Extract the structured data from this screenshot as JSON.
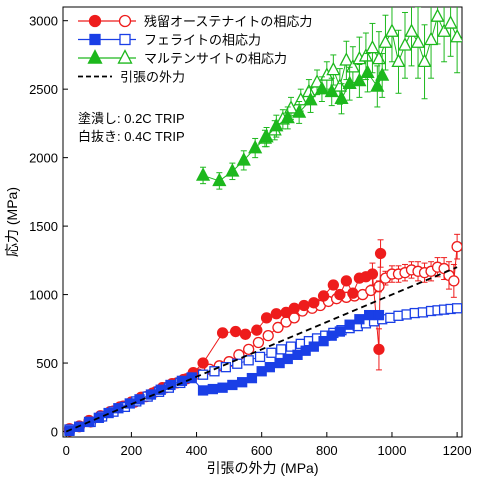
{
  "chart_data": {
    "type": "scatter",
    "xlabel": "引張の外力 (MPa)",
    "ylabel": "応力 (MPa)",
    "xlim": [
      -10,
      1215
    ],
    "ylim": [
      -40,
      3100
    ],
    "xticks": [
      0,
      200,
      400,
      600,
      800,
      1000,
      1200
    ],
    "yticks": [
      0,
      500,
      1000,
      1500,
      2000,
      2500,
      3000
    ],
    "grid": false,
    "legend_position": "top-left",
    "annotations": [
      "塗潰し: 0.2C TRIP",
      "白抜き: 0.4C TRIP"
    ],
    "series": [
      {
        "name": "残留オーステナイトの相応力",
        "color": "#ee1c1c",
        "marker": "circle",
        "filled": [
          [
            10,
            5
          ],
          [
            40,
            35
          ],
          [
            70,
            80
          ],
          [
            105,
            115
          ],
          [
            135,
            145
          ],
          [
            165,
            180
          ],
          [
            200,
            215
          ],
          [
            230,
            250
          ],
          [
            265,
            280
          ],
          [
            295,
            320
          ],
          [
            325,
            350
          ],
          [
            360,
            380
          ],
          [
            390,
            430
          ],
          [
            420,
            500
          ],
          [
            480,
            720
          ],
          [
            520,
            730
          ],
          [
            550,
            710
          ],
          [
            585,
            740
          ],
          [
            615,
            830
          ],
          [
            645,
            860
          ],
          [
            675,
            870
          ],
          [
            700,
            900
          ],
          [
            730,
            920
          ],
          [
            760,
            940
          ],
          [
            790,
            990
          ],
          [
            820,
            1070
          ],
          [
            840,
            1000
          ],
          [
            860,
            1100
          ],
          [
            880,
            1010
          ],
          [
            900,
            1120
          ],
          [
            920,
            1130
          ],
          [
            940,
            1150
          ],
          [
            960,
            600
          ],
          [
            965,
            1300
          ]
        ],
        "filled_err": [
          0,
          0,
          0,
          0,
          0,
          0,
          0,
          0,
          0,
          0,
          0,
          0,
          0,
          0,
          0,
          0,
          0,
          0,
          0,
          0,
          0,
          0,
          0,
          0,
          0,
          0,
          0,
          0,
          0,
          30,
          0,
          80,
          150,
          100
        ],
        "open": [
          [
            10,
            20
          ],
          [
            40,
            40
          ],
          [
            75,
            70
          ],
          [
            110,
            110
          ],
          [
            145,
            150
          ],
          [
            175,
            185
          ],
          [
            210,
            215
          ],
          [
            245,
            255
          ],
          [
            275,
            290
          ],
          [
            305,
            320
          ],
          [
            340,
            355
          ],
          [
            370,
            385
          ],
          [
            405,
            420
          ],
          [
            440,
            455
          ],
          [
            470,
            480
          ],
          [
            500,
            510
          ],
          [
            530,
            560
          ],
          [
            560,
            600
          ],
          [
            590,
            650
          ],
          [
            620,
            700
          ],
          [
            650,
            760
          ],
          [
            675,
            800
          ],
          [
            700,
            830
          ],
          [
            725,
            880
          ],
          [
            755,
            900
          ],
          [
            780,
            920
          ],
          [
            805,
            950
          ],
          [
            830,
            970
          ],
          [
            860,
            980
          ],
          [
            885,
            990
          ],
          [
            910,
            1000
          ],
          [
            935,
            1030
          ],
          [
            960,
            1060
          ],
          [
            980,
            1120
          ],
          [
            1000,
            1150
          ],
          [
            1020,
            1150
          ],
          [
            1040,
            1160
          ],
          [
            1060,
            1180
          ],
          [
            1080,
            1170
          ],
          [
            1100,
            1160
          ],
          [
            1120,
            1170
          ],
          [
            1140,
            1200
          ],
          [
            1160,
            1190
          ],
          [
            1175,
            1140
          ],
          [
            1190,
            1100
          ],
          [
            1200,
            1350
          ]
        ],
        "open_err": [
          0,
          0,
          0,
          0,
          0,
          0,
          0,
          0,
          0,
          0,
          0,
          0,
          0,
          0,
          0,
          0,
          0,
          0,
          0,
          0,
          0,
          0,
          0,
          0,
          0,
          0,
          0,
          0,
          0,
          0,
          0,
          0,
          40,
          50,
          60,
          60,
          60,
          60,
          70,
          70,
          70,
          70,
          80,
          100,
          120,
          90
        ]
      },
      {
        "name": "フェライトの相応力",
        "color": "#1a3fe6",
        "marker": "square",
        "filled": [
          [
            10,
            5
          ],
          [
            40,
            35
          ],
          [
            70,
            70
          ],
          [
            100,
            100
          ],
          [
            130,
            135
          ],
          [
            160,
            170
          ],
          [
            195,
            205
          ],
          [
            225,
            235
          ],
          [
            260,
            270
          ],
          [
            290,
            305
          ],
          [
            320,
            340
          ],
          [
            355,
            370
          ],
          [
            385,
            395
          ],
          [
            420,
            300
          ],
          [
            450,
            310
          ],
          [
            480,
            320
          ],
          [
            510,
            340
          ],
          [
            540,
            360
          ],
          [
            570,
            390
          ],
          [
            600,
            440
          ],
          [
            625,
            470
          ],
          [
            655,
            500
          ],
          [
            680,
            530
          ],
          [
            710,
            560
          ],
          [
            735,
            590
          ],
          [
            760,
            620
          ],
          [
            790,
            660
          ],
          [
            815,
            700
          ],
          [
            840,
            730
          ],
          [
            870,
            780
          ],
          [
            900,
            820
          ],
          [
            930,
            850
          ],
          [
            960,
            850
          ]
        ],
        "filled_err": [
          0,
          0,
          0,
          0,
          0,
          0,
          0,
          0,
          0,
          0,
          0,
          0,
          0,
          0,
          0,
          0,
          0,
          0,
          0,
          0,
          0,
          0,
          0,
          0,
          0,
          0,
          0,
          0,
          0,
          0,
          0,
          0,
          0
        ],
        "open": [
          [
            10,
            15
          ],
          [
            40,
            35
          ],
          [
            75,
            70
          ],
          [
            110,
            110
          ],
          [
            145,
            145
          ],
          [
            180,
            180
          ],
          [
            215,
            220
          ],
          [
            250,
            255
          ],
          [
            285,
            290
          ],
          [
            315,
            320
          ],
          [
            350,
            355
          ],
          [
            385,
            390
          ],
          [
            420,
            415
          ],
          [
            455,
            440
          ],
          [
            490,
            470
          ],
          [
            525,
            495
          ],
          [
            560,
            520
          ],
          [
            595,
            545
          ],
          [
            630,
            575
          ],
          [
            660,
            600
          ],
          [
            690,
            620
          ],
          [
            720,
            640
          ],
          [
            745,
            660
          ],
          [
            770,
            680
          ],
          [
            795,
            700
          ],
          [
            820,
            720
          ],
          [
            845,
            740
          ],
          [
            870,
            755
          ],
          [
            895,
            770
          ],
          [
            920,
            790
          ],
          [
            945,
            805
          ],
          [
            970,
            820
          ],
          [
            995,
            830
          ],
          [
            1020,
            845
          ],
          [
            1045,
            855
          ],
          [
            1070,
            865
          ],
          [
            1095,
            870
          ],
          [
            1120,
            880
          ],
          [
            1140,
            885
          ],
          [
            1160,
            890
          ],
          [
            1180,
            895
          ],
          [
            1200,
            900
          ]
        ],
        "open_err": [
          0,
          0,
          0,
          0,
          0,
          0,
          0,
          0,
          0,
          0,
          0,
          0,
          0,
          0,
          0,
          0,
          0,
          0,
          0,
          0,
          0,
          0,
          0,
          0,
          0,
          0,
          0,
          0,
          0,
          0,
          0,
          0,
          0,
          0,
          0,
          0,
          0,
          0,
          0,
          0,
          0,
          0
        ]
      },
      {
        "name": "マルテンサイトの相応力",
        "color": "#1db81d",
        "marker": "triangle",
        "filled": [
          [
            420,
            1870
          ],
          [
            470,
            1830
          ],
          [
            510,
            1900
          ],
          [
            545,
            1980
          ],
          [
            580,
            2070
          ],
          [
            615,
            2150
          ],
          [
            645,
            2230
          ],
          [
            680,
            2290
          ],
          [
            715,
            2330
          ],
          [
            750,
            2420
          ],
          [
            785,
            2500
          ],
          [
            815,
            2480
          ],
          [
            845,
            2430
          ],
          [
            870,
            2540
          ],
          [
            900,
            2560
          ],
          [
            925,
            2620
          ],
          [
            955,
            2520
          ],
          [
            970,
            2600
          ]
        ],
        "filled_err": [
          60,
          60,
          60,
          70,
          70,
          70,
          80,
          80,
          80,
          90,
          90,
          100,
          110,
          120,
          120,
          140,
          150,
          160
        ],
        "open": [
          [
            610,
            2140
          ],
          [
            640,
            2200
          ],
          [
            665,
            2280
          ],
          [
            690,
            2360
          ],
          [
            720,
            2420
          ],
          [
            745,
            2480
          ],
          [
            770,
            2550
          ],
          [
            800,
            2600
          ],
          [
            820,
            2640
          ],
          [
            840,
            2520
          ],
          [
            860,
            2710
          ],
          [
            880,
            2660
          ],
          [
            900,
            2720
          ],
          [
            920,
            2740
          ],
          [
            940,
            2800
          ],
          [
            960,
            2720
          ],
          [
            980,
            2840
          ],
          [
            1000,
            2920
          ],
          [
            1020,
            2700
          ],
          [
            1040,
            2820
          ],
          [
            1060,
            2920
          ],
          [
            1080,
            2840
          ],
          [
            1100,
            2700
          ],
          [
            1120,
            2860
          ],
          [
            1140,
            3030
          ],
          [
            1160,
            2920
          ],
          [
            1180,
            2980
          ],
          [
            1200,
            2880
          ]
        ],
        "open_err": [
          60,
          70,
          70,
          80,
          80,
          90,
          90,
          100,
          110,
          130,
          140,
          150,
          160,
          170,
          180,
          200,
          200,
          220,
          230,
          240,
          250,
          260,
          270,
          280,
          200,
          220,
          240,
          260
        ]
      },
      {
        "name": "引張の外力",
        "color": "#000000",
        "marker": "dashed-line",
        "points": [
          [
            0,
            0
          ],
          [
            1200,
            1200
          ]
        ]
      }
    ]
  }
}
